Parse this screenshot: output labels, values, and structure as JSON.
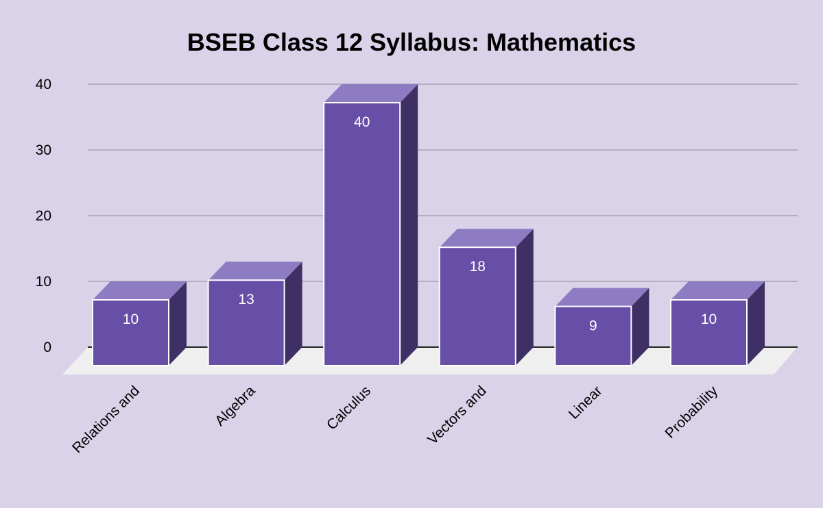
{
  "chart_data": {
    "type": "bar",
    "title": "BSEB Class 12 Syllabus: Mathematics",
    "xlabel": "",
    "ylabel": "",
    "categories": [
      "Relations and",
      "Algebra",
      "Calculus",
      "Vectors and",
      "Linear",
      "Probability"
    ],
    "values": [
      10,
      13,
      40,
      18,
      9,
      10
    ],
    "yticks": [
      "0",
      "10",
      "20",
      "30",
      "40"
    ],
    "ylim": [
      0,
      40
    ],
    "grid": true,
    "legend": "none",
    "three_d": true,
    "data_labels": true,
    "colors": {
      "background": "#d9d2e9",
      "bar_front": "#674ea7",
      "bar_top": "#8e7cc3",
      "bar_side": "#3e2f64",
      "floor": "#f0eff0",
      "grid": "#b4aec0",
      "baseline": "#222222"
    }
  }
}
